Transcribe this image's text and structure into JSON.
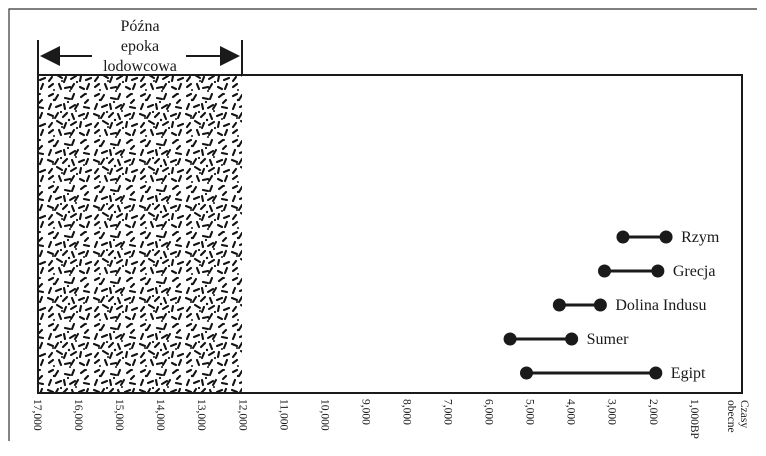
{
  "ice_age_label": [
    "Późna",
    "epoka",
    "lodowcowa"
  ],
  "axis": {
    "ticks": [
      "17,000",
      "16,000",
      "15,000",
      "14,000",
      "13,000",
      "12,000",
      "11,000",
      "10,000",
      "9,000",
      "8,000",
      "7,000",
      "6,000",
      "5,000",
      "4,000",
      "3,000",
      "2,000",
      "1,000BP"
    ],
    "present_label": [
      "Czasy",
      "obecne"
    ]
  },
  "ice_age_span": [
    17000,
    12000
  ],
  "civilizations": [
    {
      "name": "Rzym",
      "start": 2750,
      "end": 1700
    },
    {
      "name": "Grecja",
      "start": 3200,
      "end": 1900
    },
    {
      "name": "Dolina Indusu",
      "start": 4300,
      "end": 3300
    },
    {
      "name": "Sumer",
      "start": 5500,
      "end": 4000
    },
    {
      "name": "Egipt",
      "start": 5100,
      "end": 1950
    }
  ],
  "colors": {
    "ink": "#1a1a1a",
    "background": "#ffffff"
  }
}
